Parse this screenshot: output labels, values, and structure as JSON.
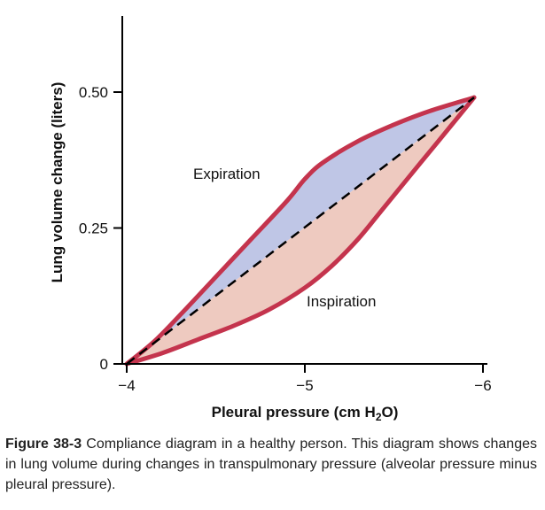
{
  "chart_data": {
    "type": "area",
    "xlabel": "Pleural pressure (cm H",
    "xlabel_sub": "2",
    "xlabel_tail": "O)",
    "ylabel": "Lung volume change (liters)",
    "xlim": [
      -4,
      -6
    ],
    "ylim": [
      0,
      0.66
    ],
    "x_ticks": [
      -4,
      -5,
      -6
    ],
    "x_tick_labels": [
      "−4",
      "−5",
      "−6"
    ],
    "y_ticks": [
      0,
      0.25,
      0.5
    ],
    "y_tick_labels": [
      "0",
      "0.25",
      "0.50"
    ],
    "series": [
      {
        "name": "Expiration",
        "x": [
          -4.0,
          -4.15,
          -4.3,
          -4.5,
          -4.7,
          -4.9,
          -5.0,
          -5.1,
          -5.3,
          -5.5,
          -5.7,
          -5.95
        ],
        "y": [
          0.0,
          0.04,
          0.09,
          0.16,
          0.23,
          0.3,
          0.34,
          0.37,
          0.41,
          0.44,
          0.465,
          0.49
        ],
        "fill": "#bfc6e6",
        "stroke": "#c4344d"
      },
      {
        "name": "Inspiration",
        "x": [
          -4.0,
          -4.2,
          -4.4,
          -4.6,
          -4.8,
          -5.0,
          -5.15,
          -5.3,
          -5.45,
          -5.6,
          -5.75,
          -5.95
        ],
        "y": [
          0.0,
          0.02,
          0.045,
          0.07,
          0.1,
          0.14,
          0.18,
          0.23,
          0.29,
          0.35,
          0.41,
          0.49
        ],
        "fill": "#eecac0",
        "stroke": "#c4344d"
      },
      {
        "name": "",
        "style": "dashed",
        "x": [
          -4.0,
          -5.95
        ],
        "y": [
          0.0,
          0.49
        ],
        "stroke": "#000000"
      }
    ],
    "annotations": [
      "Expiration",
      "Inspiration"
    ],
    "grid": false,
    "legend": "none"
  },
  "caption": {
    "label": "Figure 38-3",
    "text": " Compliance diagram in a healthy person. This diagram shows changes in lung volume during changes in transpulmonary pressure (alveolar pressure minus pleural pressure)."
  }
}
